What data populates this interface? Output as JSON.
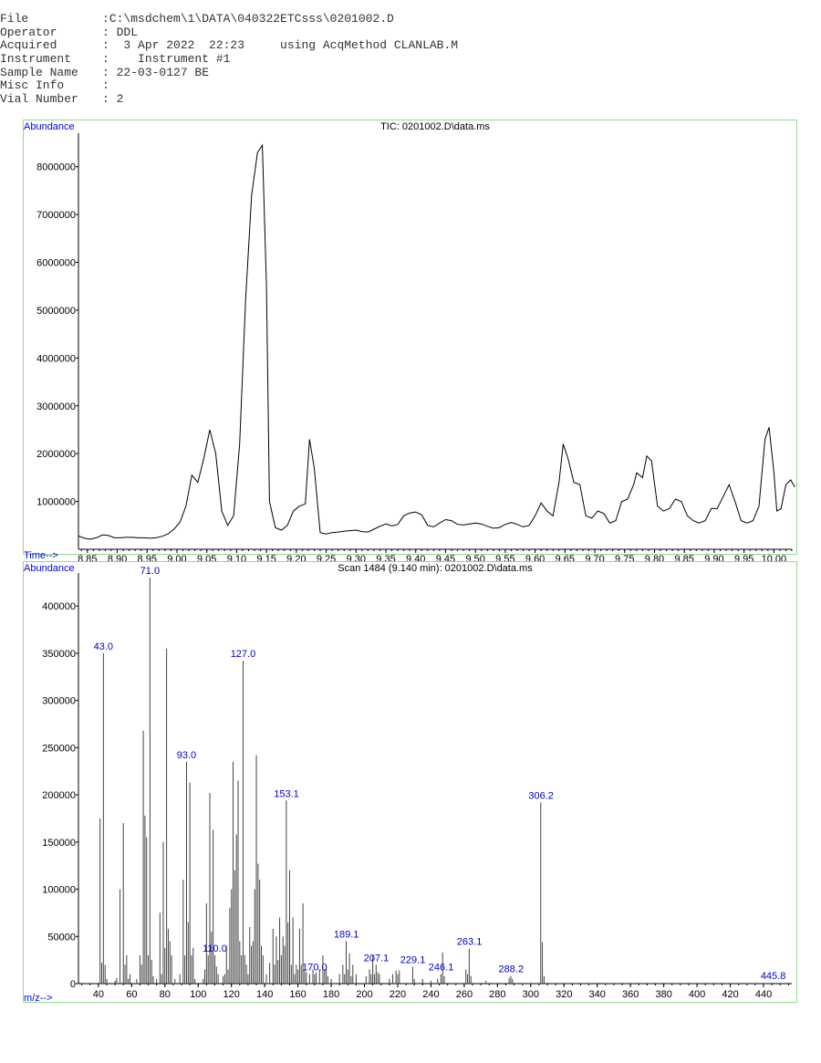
{
  "header": {
    "rows": [
      {
        "key": "File",
        "sep": ":",
        "value": "C:\\msdchem\\1\\DATA\\040322ETCsss\\0201002.D"
      },
      {
        "key": "Operator",
        "sep": ": ",
        "value": "DDL"
      },
      {
        "key": "Acquired",
        "sep": ": ",
        "value": " 3 Apr 2022  22:23     using AcqMethod CLANLAB.M"
      },
      {
        "key": "Instrument",
        "sep": ": ",
        "value": "   Instrument #1"
      },
      {
        "key": "Sample Name",
        "sep": ": ",
        "value": "22-03-0127 BE"
      },
      {
        "key": "Misc Info",
        "sep": ": ",
        "value": ""
      },
      {
        "key": "Vial Number",
        "sep": ": ",
        "value": "2"
      }
    ]
  },
  "chart_data": [
    {
      "type": "line",
      "title": "TIC: 0201002.D\\data.ms",
      "ylabel": "Abundance",
      "xlabel": "Time-->",
      "xlim": [
        8.835,
        10.03
      ],
      "ylim": [
        0,
        8700000
      ],
      "yticks": [
        1000000,
        2000000,
        3000000,
        4000000,
        5000000,
        6000000,
        7000000,
        8000000
      ],
      "xticks": [
        "8.85",
        "8.90",
        "8.95",
        "9.00",
        "9.05",
        "9.10",
        "9.15",
        "9.20",
        "9.25",
        "9.30",
        "9.35",
        "9.40",
        "9.45",
        "9.50",
        "9.55",
        "9.60",
        "9.65",
        "9.70",
        "9.75",
        "9.80",
        "9.85",
        "9.90",
        "9.95",
        "10.00"
      ],
      "color": "#333333",
      "points": [
        [
          8.835,
          280000
        ],
        [
          8.845,
          230000
        ],
        [
          8.855,
          210000
        ],
        [
          8.865,
          240000
        ],
        [
          8.875,
          300000
        ],
        [
          8.885,
          290000
        ],
        [
          8.895,
          240000
        ],
        [
          8.905,
          240000
        ],
        [
          8.915,
          250000
        ],
        [
          8.925,
          250000
        ],
        [
          8.935,
          240000
        ],
        [
          8.945,
          240000
        ],
        [
          8.955,
          230000
        ],
        [
          8.965,
          240000
        ],
        [
          8.975,
          270000
        ],
        [
          8.985,
          320000
        ],
        [
          8.995,
          420000
        ],
        [
          9.005,
          560000
        ],
        [
          9.015,
          900000
        ],
        [
          9.025,
          1550000
        ],
        [
          9.035,
          1400000
        ],
        [
          9.045,
          1900000
        ],
        [
          9.055,
          2500000
        ],
        [
          9.065,
          2000000
        ],
        [
          9.075,
          800000
        ],
        [
          9.085,
          500000
        ],
        [
          9.095,
          700000
        ],
        [
          9.105,
          2200000
        ],
        [
          9.115,
          5200000
        ],
        [
          9.125,
          7400000
        ],
        [
          9.135,
          8300000
        ],
        [
          9.143,
          8450000
        ],
        [
          9.15,
          5500000
        ],
        [
          9.155,
          1000000
        ],
        [
          9.165,
          450000
        ],
        [
          9.175,
          400000
        ],
        [
          9.185,
          500000
        ],
        [
          9.195,
          800000
        ],
        [
          9.205,
          900000
        ],
        [
          9.215,
          950000
        ],
        [
          9.222,
          2300000
        ],
        [
          9.23,
          1700000
        ],
        [
          9.24,
          350000
        ],
        [
          9.25,
          320000
        ],
        [
          9.26,
          350000
        ],
        [
          9.27,
          360000
        ],
        [
          9.28,
          380000
        ],
        [
          9.29,
          390000
        ],
        [
          9.3,
          400000
        ],
        [
          9.31,
          370000
        ],
        [
          9.32,
          360000
        ],
        [
          9.33,
          420000
        ],
        [
          9.34,
          480000
        ],
        [
          9.35,
          530000
        ],
        [
          9.36,
          490000
        ],
        [
          9.37,
          520000
        ],
        [
          9.38,
          700000
        ],
        [
          9.39,
          760000
        ],
        [
          9.4,
          780000
        ],
        [
          9.41,
          720000
        ],
        [
          9.42,
          500000
        ],
        [
          9.43,
          470000
        ],
        [
          9.44,
          550000
        ],
        [
          9.45,
          620000
        ],
        [
          9.46,
          600000
        ],
        [
          9.47,
          520000
        ],
        [
          9.48,
          510000
        ],
        [
          9.49,
          530000
        ],
        [
          9.5,
          550000
        ],
        [
          9.51,
          530000
        ],
        [
          9.52,
          480000
        ],
        [
          9.53,
          440000
        ],
        [
          9.54,
          450000
        ],
        [
          9.55,
          520000
        ],
        [
          9.56,
          560000
        ],
        [
          9.57,
          520000
        ],
        [
          9.58,
          470000
        ],
        [
          9.59,
          500000
        ],
        [
          9.6,
          700000
        ],
        [
          9.61,
          970000
        ],
        [
          9.62,
          800000
        ],
        [
          9.63,
          700000
        ],
        [
          9.64,
          1400000
        ],
        [
          9.647,
          2200000
        ],
        [
          9.655,
          1900000
        ],
        [
          9.665,
          1400000
        ],
        [
          9.675,
          1350000
        ],
        [
          9.685,
          700000
        ],
        [
          9.695,
          650000
        ],
        [
          9.705,
          800000
        ],
        [
          9.715,
          750000
        ],
        [
          9.725,
          550000
        ],
        [
          9.735,
          600000
        ],
        [
          9.745,
          1000000
        ],
        [
          9.755,
          1050000
        ],
        [
          9.765,
          1350000
        ],
        [
          9.77,
          1600000
        ],
        [
          9.78,
          1500000
        ],
        [
          9.787,
          1950000
        ],
        [
          9.795,
          1850000
        ],
        [
          9.805,
          900000
        ],
        [
          9.815,
          800000
        ],
        [
          9.825,
          850000
        ],
        [
          9.835,
          1050000
        ],
        [
          9.845,
          1000000
        ],
        [
          9.855,
          700000
        ],
        [
          9.865,
          600000
        ],
        [
          9.875,
          550000
        ],
        [
          9.885,
          600000
        ],
        [
          9.895,
          850000
        ],
        [
          9.905,
          850000
        ],
        [
          9.915,
          1100000
        ],
        [
          9.925,
          1350000
        ],
        [
          9.935,
          1000000
        ],
        [
          9.945,
          600000
        ],
        [
          9.955,
          550000
        ],
        [
          9.965,
          600000
        ],
        [
          9.975,
          900000
        ],
        [
          9.985,
          2300000
        ],
        [
          9.992,
          2550000
        ],
        [
          10.0,
          1600000
        ],
        [
          10.005,
          800000
        ],
        [
          10.012,
          850000
        ],
        [
          10.02,
          1350000
        ],
        [
          10.028,
          1450000
        ],
        [
          10.035,
          1300000
        ]
      ]
    },
    {
      "type": "bar",
      "title": "Scan 1484 (9.140 min): 0201002.D\\data.ms",
      "ylabel": "Abundance",
      "xlabel": "m/z-->",
      "xlim": [
        28,
        457
      ],
      "ylim": [
        0,
        435000
      ],
      "yticks": [
        0,
        50000,
        100000,
        150000,
        200000,
        250000,
        300000,
        350000,
        400000
      ],
      "xticks": [
        40,
        60,
        80,
        100,
        120,
        140,
        160,
        180,
        200,
        220,
        240,
        260,
        280,
        300,
        320,
        340,
        360,
        380,
        400,
        420,
        440
      ],
      "labels": [
        {
          "mz": 43,
          "text": "43.0"
        },
        {
          "mz": 71,
          "text": "71.0"
        },
        {
          "mz": 93,
          "text": "93.0"
        },
        {
          "mz": 110,
          "text": "110.0"
        },
        {
          "mz": 127,
          "text": "127.0"
        },
        {
          "mz": 153.1,
          "text": "153.1"
        },
        {
          "mz": 170,
          "text": "170.0"
        },
        {
          "mz": 189.1,
          "text": "189.1"
        },
        {
          "mz": 207.1,
          "text": "207.1"
        },
        {
          "mz": 229.1,
          "text": "229.1"
        },
        {
          "mz": 246.1,
          "text": "246.1"
        },
        {
          "mz": 263.1,
          "text": "263.1"
        },
        {
          "mz": 288.2,
          "text": "288.2"
        },
        {
          "mz": 306.2,
          "text": "306.2"
        },
        {
          "mz": 445.8,
          "text": "445.8"
        }
      ],
      "peaks": [
        [
          41,
          175000
        ],
        [
          42,
          22000
        ],
        [
          43,
          350000
        ],
        [
          44,
          20000
        ],
        [
          45,
          5000
        ],
        [
          50,
          3000
        ],
        [
          51,
          6000
        ],
        [
          53,
          100000
        ],
        [
          55,
          170000
        ],
        [
          56,
          20000
        ],
        [
          57,
          30000
        ],
        [
          58,
          5000
        ],
        [
          59,
          10000
        ],
        [
          63,
          5000
        ],
        [
          65,
          30000
        ],
        [
          66,
          20000
        ],
        [
          67,
          268000
        ],
        [
          68,
          178000
        ],
        [
          69,
          155000
        ],
        [
          70,
          30000
        ],
        [
          71,
          430000
        ],
        [
          72,
          25000
        ],
        [
          73,
          8000
        ],
        [
          75,
          5000
        ],
        [
          77,
          75000
        ],
        [
          78,
          10000
        ],
        [
          79,
          150000
        ],
        [
          80,
          38000
        ],
        [
          81,
          355000
        ],
        [
          82,
          58000
        ],
        [
          83,
          45000
        ],
        [
          84,
          30000
        ],
        [
          86,
          5000
        ],
        [
          89,
          10000
        ],
        [
          91,
          110000
        ],
        [
          92,
          30000
        ],
        [
          93,
          235000
        ],
        [
          94,
          65000
        ],
        [
          95,
          213000
        ],
        [
          96,
          30000
        ],
        [
          97,
          38000
        ],
        [
          98,
          5000
        ],
        [
          103,
          5000
        ],
        [
          104,
          15000
        ],
        [
          105,
          85000
        ],
        [
          106,
          30000
        ],
        [
          107,
          202000
        ],
        [
          108,
          55000
        ],
        [
          109,
          163000
        ],
        [
          110,
          30000
        ],
        [
          111,
          18000
        ],
        [
          112,
          10000
        ],
        [
          115,
          8000
        ],
        [
          116,
          10000
        ],
        [
          117,
          40000
        ],
        [
          118,
          15000
        ],
        [
          119,
          80000
        ],
        [
          120,
          100000
        ],
        [
          121,
          235000
        ],
        [
          122,
          120000
        ],
        [
          123,
          158000
        ],
        [
          124,
          215000
        ],
        [
          125,
          45000
        ],
        [
          126,
          30000
        ],
        [
          127,
          342000
        ],
        [
          128,
          30000
        ],
        [
          129,
          20000
        ],
        [
          130,
          10000
        ],
        [
          131,
          60000
        ],
        [
          132,
          40000
        ],
        [
          133,
          45000
        ],
        [
          134,
          100000
        ],
        [
          135,
          242000
        ],
        [
          136,
          127000
        ],
        [
          137,
          110000
        ],
        [
          138,
          40000
        ],
        [
          139,
          30000
        ],
        [
          141,
          10000
        ],
        [
          143,
          22000
        ],
        [
          145,
          58000
        ],
        [
          146,
          20000
        ],
        [
          147,
          50000
        ],
        [
          148,
          25000
        ],
        [
          149,
          70000
        ],
        [
          150,
          30000
        ],
        [
          151,
          50000
        ],
        [
          152,
          40000
        ],
        [
          153,
          194000
        ],
        [
          154,
          65000
        ],
        [
          155,
          120000
        ],
        [
          156,
          20000
        ],
        [
          157,
          70000
        ],
        [
          158,
          10000
        ],
        [
          159,
          20000
        ],
        [
          160,
          15000
        ],
        [
          161,
          58000
        ],
        [
          162,
          20000
        ],
        [
          163,
          85000
        ],
        [
          164,
          15000
        ],
        [
          165,
          12000
        ],
        [
          167,
          10000
        ],
        [
          169,
          15000
        ],
        [
          170,
          10000
        ],
        [
          171,
          12000
        ],
        [
          173,
          15000
        ],
        [
          175,
          30000
        ],
        [
          176,
          15000
        ],
        [
          177,
          20000
        ],
        [
          178,
          8000
        ],
        [
          180,
          5000
        ],
        [
          185,
          10000
        ],
        [
          187,
          20000
        ],
        [
          188,
          10000
        ],
        [
          189,
          45000
        ],
        [
          190,
          15000
        ],
        [
          191,
          32000
        ],
        [
          192,
          8000
        ],
        [
          193,
          20000
        ],
        [
          195,
          10000
        ],
        [
          201,
          8000
        ],
        [
          203,
          15000
        ],
        [
          204,
          10000
        ],
        [
          205,
          30000
        ],
        [
          206,
          10000
        ],
        [
          207,
          20000
        ],
        [
          208,
          12000
        ],
        [
          209,
          10000
        ],
        [
          215,
          5000
        ],
        [
          217,
          10000
        ],
        [
          219,
          14000
        ],
        [
          220,
          10000
        ],
        [
          221,
          14000
        ],
        [
          229,
          18000
        ],
        [
          230,
          5000
        ],
        [
          235,
          5000
        ],
        [
          240,
          3000
        ],
        [
          244,
          5000
        ],
        [
          246,
          10000
        ],
        [
          247,
          33000
        ],
        [
          248,
          8000
        ],
        [
          261,
          15000
        ],
        [
          262,
          10000
        ],
        [
          263,
          37000
        ],
        [
          264,
          8000
        ],
        [
          273,
          3000
        ],
        [
          287,
          6000
        ],
        [
          288,
          8000
        ],
        [
          289,
          5000
        ],
        [
          306,
          192000
        ],
        [
          307,
          44000
        ],
        [
          308,
          8000
        ],
        [
          445.8,
          1000
        ]
      ]
    }
  ]
}
